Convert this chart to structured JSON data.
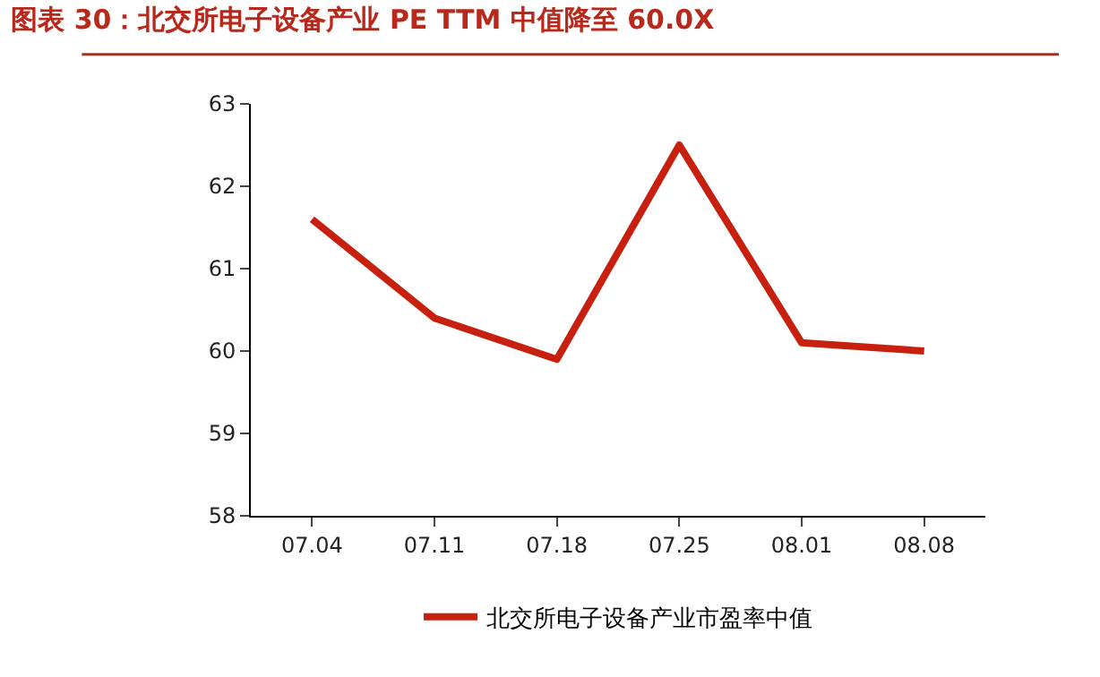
{
  "chart_data": {
    "type": "line",
    "title": "图表 30：北交所电子设备产业 PE TTM 中值降至 60.0X",
    "categories": [
      "07.04",
      "07.11",
      "07.18",
      "07.25",
      "08.01",
      "08.08"
    ],
    "series": [
      {
        "name": "北交所电子设备产业市盈率中值",
        "color": "#c8200e",
        "values": [
          61.6,
          60.4,
          59.9,
          62.5,
          60.1,
          60.0
        ]
      }
    ],
    "ylim": [
      58,
      63
    ],
    "yticks": [
      58,
      59,
      60,
      61,
      62,
      63
    ],
    "legend": "bottom",
    "marker": "none",
    "line_style": "solid"
  }
}
